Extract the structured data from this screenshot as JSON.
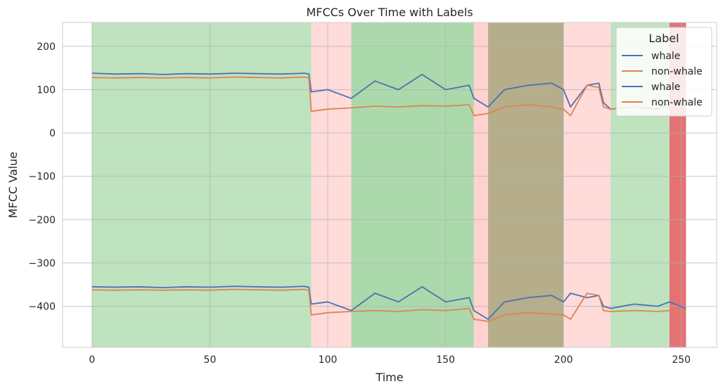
{
  "chart_data": {
    "type": "line",
    "title": "MFCCs Over Time with Labels",
    "xlabel": "Time",
    "ylabel": "MFCC Value",
    "xlim": [
      -12.5,
      265
    ],
    "ylim": [
      -495,
      255
    ],
    "x_ticks": [
      0,
      50,
      100,
      150,
      200,
      250
    ],
    "y_ticks": [
      200,
      100,
      0,
      -100,
      -200,
      -300,
      -400
    ],
    "y_tick_labels": [
      "200",
      "100",
      "0",
      "−100",
      "−200",
      "−300",
      "−400"
    ],
    "grid": true,
    "legend": {
      "title": "Label",
      "placement": "top-right",
      "entries": [
        {
          "label": "whale",
          "color": "#4c72b0"
        },
        {
          "label": "non-whale",
          "color": "#dd8452"
        },
        {
          "label": "whale",
          "color": "#4c72b0"
        },
        {
          "label": "non-whale",
          "color": "#dd8452"
        }
      ]
    },
    "series": [
      {
        "name": "whale",
        "color": "#4c72b0",
        "x": [
          0,
          10,
          20,
          30,
          40,
          50,
          60,
          70,
          80,
          90,
          92,
          93,
          100,
          110,
          120,
          130,
          140,
          150,
          160,
          162,
          168,
          175,
          185,
          195,
          200,
          203,
          210,
          215,
          217,
          220,
          230,
          240,
          245,
          252
        ],
        "y": [
          138,
          136,
          137,
          135,
          137,
          136,
          138,
          137,
          136,
          138,
          136,
          95,
          100,
          80,
          120,
          100,
          135,
          100,
          110,
          80,
          60,
          100,
          110,
          115,
          100,
          60,
          110,
          115,
          70,
          55,
          60,
          55,
          70,
          65
        ]
      },
      {
        "name": "non-whale",
        "color": "#dd8452",
        "x": [
          0,
          10,
          20,
          30,
          40,
          50,
          60,
          70,
          80,
          90,
          92,
          93,
          100,
          110,
          120,
          130,
          140,
          150,
          160,
          162,
          168,
          175,
          185,
          195,
          200,
          203,
          210,
          215,
          217,
          220,
          230,
          240,
          245,
          252
        ],
        "y": [
          128,
          127,
          128,
          127,
          128,
          127,
          129,
          128,
          127,
          129,
          127,
          50,
          55,
          58,
          62,
          60,
          63,
          62,
          65,
          40,
          45,
          60,
          65,
          60,
          55,
          40,
          110,
          105,
          60,
          55,
          60,
          58,
          60,
          55
        ]
      },
      {
        "name": "whale",
        "color": "#4c72b0",
        "x": [
          0,
          10,
          20,
          30,
          40,
          50,
          60,
          70,
          80,
          90,
          92,
          93,
          100,
          110,
          120,
          130,
          140,
          150,
          160,
          162,
          168,
          175,
          185,
          195,
          200,
          203,
          210,
          215,
          217,
          220,
          230,
          240,
          245,
          252
        ],
        "y": [
          -355,
          -356,
          -355,
          -357,
          -355,
          -356,
          -354,
          -355,
          -356,
          -354,
          -356,
          -395,
          -390,
          -410,
          -370,
          -390,
          -355,
          -390,
          -380,
          -410,
          -430,
          -390,
          -380,
          -375,
          -390,
          -370,
          -380,
          -375,
          -400,
          -405,
          -395,
          -400,
          -390,
          -405
        ]
      },
      {
        "name": "non-whale",
        "color": "#dd8452",
        "x": [
          0,
          10,
          20,
          30,
          40,
          50,
          60,
          70,
          80,
          90,
          92,
          93,
          100,
          110,
          120,
          130,
          140,
          150,
          160,
          162,
          168,
          175,
          185,
          195,
          200,
          203,
          210,
          215,
          217,
          220,
          230,
          240,
          245,
          252
        ],
        "y": [
          -362,
          -363,
          -362,
          -363,
          -362,
          -363,
          -361,
          -362,
          -363,
          -361,
          -363,
          -420,
          -415,
          -412,
          -410,
          -412,
          -408,
          -410,
          -405,
          -430,
          -435,
          -420,
          -415,
          -418,
          -420,
          -430,
          -370,
          -375,
          -410,
          -412,
          -410,
          -412,
          -410,
          -412
        ]
      }
    ],
    "background_bands": [
      {
        "start": 0,
        "end": 93,
        "color": "#2ca02c",
        "opacity": 0.3
      },
      {
        "start": 93,
        "end": 110,
        "color": "#ff9896",
        "opacity": 0.35
      },
      {
        "start": 110,
        "end": 162,
        "color": "#2ca02c",
        "opacity": 0.4
      },
      {
        "start": 162,
        "end": 168,
        "color": "#ff9896",
        "opacity": 0.45
      },
      {
        "start": 168,
        "end": 200,
        "color": "#7a6a2a",
        "opacity": 0.55
      },
      {
        "start": 200,
        "end": 220,
        "color": "#ff9896",
        "opacity": 0.35
      },
      {
        "start": 220,
        "end": 245,
        "color": "#2ca02c",
        "opacity": 0.3
      },
      {
        "start": 245,
        "end": 252,
        "color": "#d62728",
        "opacity": 0.65
      }
    ]
  }
}
